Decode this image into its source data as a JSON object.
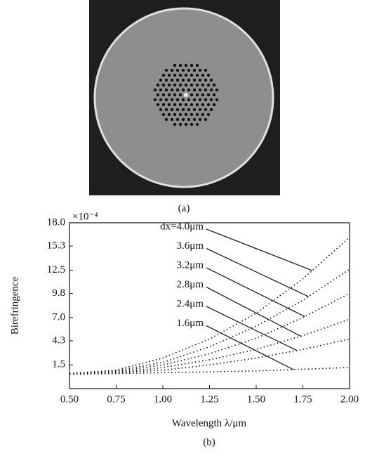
{
  "chart_data": {
    "type": "line",
    "panel_a_label": "(a)",
    "panel_b_label": "(b)",
    "y_multiplier": "×10⁻⁴",
    "xlabel": "Wavelength λ/μm",
    "ylabel": "Birefringence",
    "xlim": [
      0.5,
      2.0
    ],
    "xticks": [
      {
        "value": 0.5,
        "label": "0.50"
      },
      0.75,
      {
        "value": 1.0,
        "label": "1.00"
      },
      1.25,
      {
        "value": 1.5,
        "label": "1.50"
      },
      1.75,
      {
        "value": 2.0,
        "label": "2.00"
      }
    ],
    "ylim": [
      -1.25,
      18.0
    ],
    "yticks": [
      1.5,
      4.3,
      {
        "value": 7.0,
        "label": "7.0"
      },
      9.8,
      12.5,
      15.3,
      {
        "value": 18.0,
        "label": "18.0"
      }
    ],
    "x": [
      0.5,
      0.75,
      1.0,
      1.25,
      1.5,
      1.75,
      2.0
    ],
    "series": [
      {
        "name": "dx=4.0μm",
        "color": "#111",
        "values": [
          0.5,
          0.9,
          2.3,
          4.5,
          7.5,
          11.5,
          16.3
        ]
      },
      {
        "name": "3.6μm",
        "color": "#111",
        "values": [
          0.5,
          0.8,
          1.8,
          3.6,
          6.0,
          9.0,
          12.6
        ]
      },
      {
        "name": "3.2μm",
        "color": "#111",
        "values": [
          0.5,
          0.7,
          1.5,
          2.8,
          4.6,
          7.0,
          9.8
        ]
      },
      {
        "name": "2.8μm",
        "color": "#111",
        "values": [
          0.5,
          0.6,
          1.2,
          2.1,
          3.3,
          4.9,
          6.8
        ]
      },
      {
        "name": "2.4μm",
        "color": "#111",
        "values": [
          0.5,
          0.6,
          0.9,
          1.5,
          2.3,
          3.3,
          4.5
        ]
      },
      {
        "name": "1.6μm",
        "color": "#111",
        "values": [
          0.4,
          0.5,
          0.6,
          0.7,
          0.8,
          1.0,
          1.2
        ]
      }
    ]
  }
}
